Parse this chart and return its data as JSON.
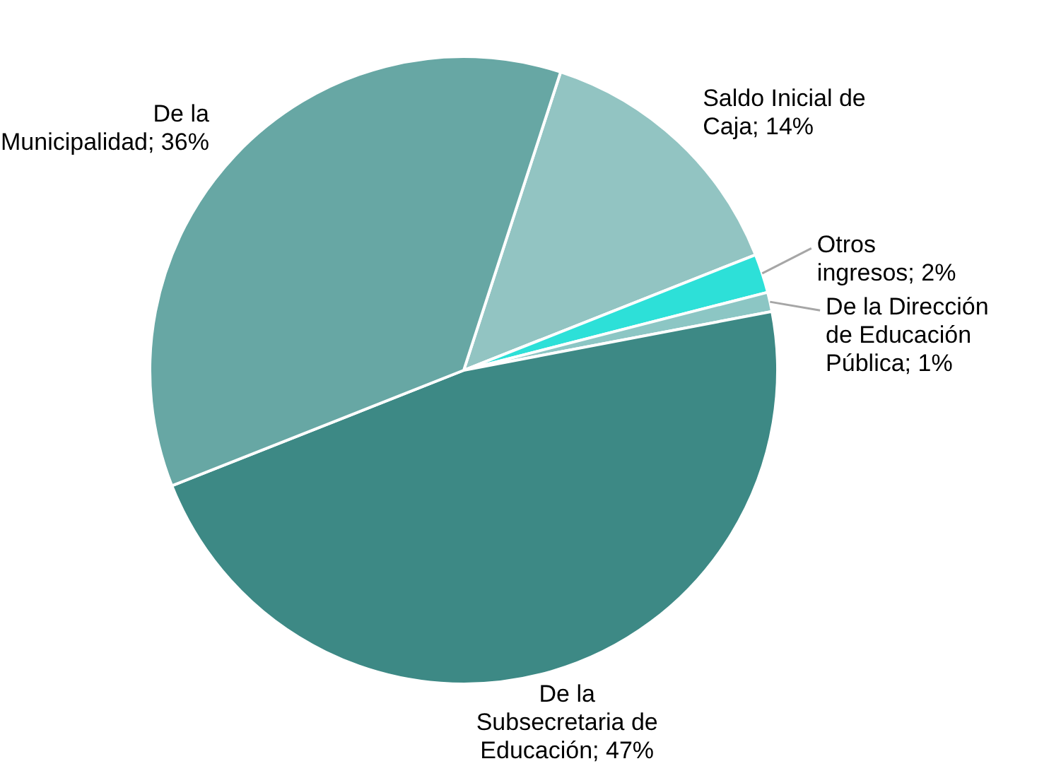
{
  "chart_data": {
    "type": "pie",
    "categories": [
      "Saldo Inicial de Caja",
      "Otros ingresos",
      "De la Dirección de Educación Pública",
      "De la Subsecretaria de Educación",
      "De la Municipalidad"
    ],
    "values": [
      14,
      2,
      1,
      47,
      36
    ],
    "value_labels": [
      "14%",
      "2%",
      "1%",
      "47%",
      "36%"
    ],
    "colors": [
      "#92c4c2",
      "#2de0d8",
      "#8cc6c4",
      "#3d8985",
      "#67a7a4"
    ]
  }
}
